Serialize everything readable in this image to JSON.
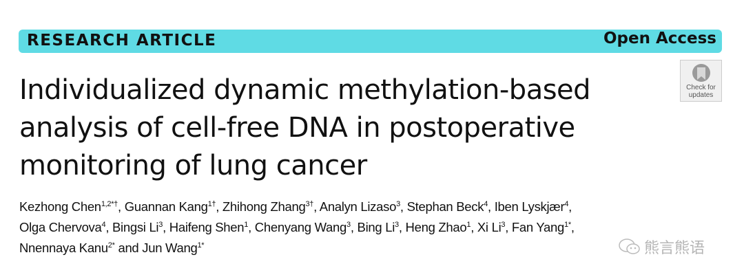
{
  "header": {
    "article_type": "RESEARCH ARTICLE",
    "access": "Open Access",
    "check_updates": [
      "Check for",
      "updates"
    ]
  },
  "title": "Individualized dynamic methylation-based analysis of cell-free DNA in postoperative monitoring of lung cancer",
  "authors": [
    {
      "name": "Kezhong Chen",
      "sup": "1,2*†"
    },
    {
      "name": "Guannan Kang",
      "sup": "1†"
    },
    {
      "name": "Zhihong Zhang",
      "sup": "3†"
    },
    {
      "name": "Analyn Lizaso",
      "sup": "3"
    },
    {
      "name": "Stephan Beck",
      "sup": "4"
    },
    {
      "name": "Iben Lyskjær",
      "sup": "4"
    },
    {
      "name": "Olga Chervova",
      "sup": "4"
    },
    {
      "name": "Bingsi Li",
      "sup": "3"
    },
    {
      "name": "Haifeng Shen",
      "sup": "1"
    },
    {
      "name": "Chenyang Wang",
      "sup": "3"
    },
    {
      "name": "Bing Li",
      "sup": "3"
    },
    {
      "name": "Heng Zhao",
      "sup": "1"
    },
    {
      "name": "Xi Li",
      "sup": "3"
    },
    {
      "name": "Fan Yang",
      "sup": "1*"
    },
    {
      "name": "Nnennaya Kanu",
      "sup": "2*"
    },
    {
      "name": "Jun Wang",
      "sup": "1*"
    }
  ],
  "author_separator": ", ",
  "author_last_separator": " and ",
  "watermark": "熊言熊语",
  "colors": {
    "banner": "#5fdbe4"
  }
}
